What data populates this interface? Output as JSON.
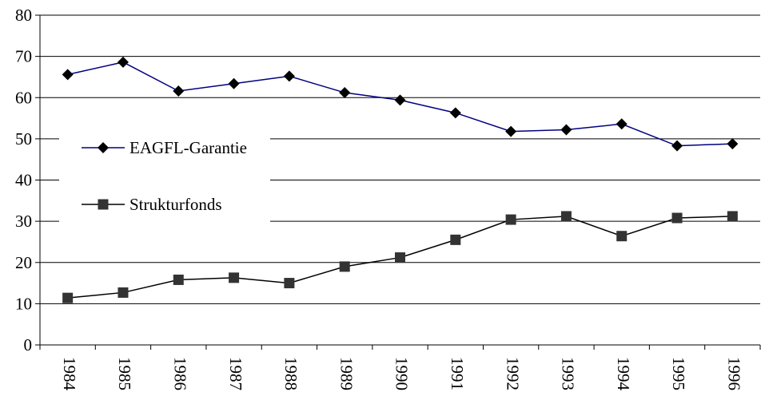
{
  "chart_data": {
    "type": "line",
    "title": "",
    "xlabel": "",
    "ylabel": "",
    "categories": [
      "1984",
      "1985",
      "1986",
      "1987",
      "1988",
      "1989",
      "1990",
      "1991",
      "1992",
      "1993",
      "1994",
      "1995",
      "1996"
    ],
    "ylim": [
      0,
      80
    ],
    "yticks": [
      0,
      10,
      20,
      30,
      40,
      50,
      60,
      70,
      80
    ],
    "grid": true,
    "legend_position": "left",
    "series": [
      {
        "name": "EAGFL-Garantie",
        "marker": "diamond",
        "color": "#000080",
        "values": [
          65.6,
          68.6,
          61.6,
          63.4,
          65.2,
          61.2,
          59.4,
          56.3,
          51.8,
          52.2,
          53.6,
          48.3,
          48.8
        ]
      },
      {
        "name": "Strukturfonds",
        "marker": "square",
        "color": "#000000",
        "values": [
          11.4,
          12.7,
          15.8,
          16.3,
          15.0,
          19.0,
          21.2,
          25.5,
          30.4,
          31.2,
          26.4,
          30.8,
          31.2
        ]
      }
    ]
  }
}
